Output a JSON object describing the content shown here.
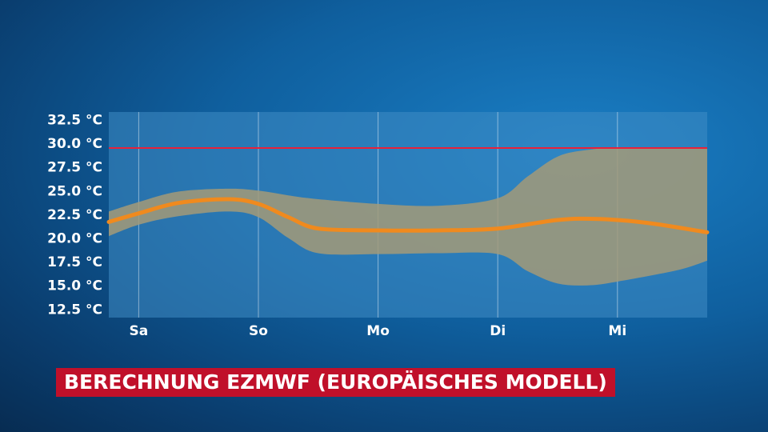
{
  "caption": "BERECHNUNG EZMWF (EUROPÄISCHES MODELL)",
  "colors": {
    "median_line": "#f08a1e",
    "band": "#a39a78",
    "threshold_line": "#e8213a",
    "plot_bg": "#3f8cc4",
    "caption_bg": "#c0102a"
  },
  "chart_data": {
    "type": "line",
    "categories": [
      "Sa",
      "So",
      "Mo",
      "Di",
      "Mi"
    ],
    "x_domain": [
      -0.25,
      4.75
    ],
    "ylim": [
      11.6,
      33.3
    ],
    "y_ticks": [
      {
        "v": 12.5,
        "label": "12.5 °C"
      },
      {
        "v": 15.0,
        "label": "15.0 °C"
      },
      {
        "v": 17.5,
        "label": "17.5 °C"
      },
      {
        "v": 20.0,
        "label": "20.0 °C"
      },
      {
        "v": 22.5,
        "label": "22.5 °C"
      },
      {
        "v": 25.0,
        "label": "25.0 °C"
      },
      {
        "v": 27.5,
        "label": "27.5 °C"
      },
      {
        "v": 30.0,
        "label": "30.0 °C"
      },
      {
        "v": 32.5,
        "label": "32.5 °C"
      }
    ],
    "threshold": 29.5,
    "grid": "vertical",
    "median": {
      "x": [
        -0.25,
        0,
        0.33,
        0.75,
        1.0,
        1.25,
        1.5,
        2.0,
        2.5,
        3.0,
        3.5,
        3.85,
        4.25,
        4.75
      ],
      "y": [
        21.7,
        22.6,
        23.7,
        24.1,
        23.6,
        22.2,
        21.0,
        20.8,
        20.8,
        21.0,
        21.9,
        22.0,
        21.6,
        20.6
      ]
    },
    "band_upper": {
      "x": [
        -0.25,
        0,
        0.33,
        0.75,
        1.0,
        1.25,
        1.5,
        2.0,
        2.5,
        3.0,
        3.25,
        3.5,
        3.75,
        4.0,
        4.5,
        4.75
      ],
      "y": [
        22.8,
        23.8,
        24.9,
        25.2,
        25.0,
        24.5,
        24.1,
        23.6,
        23.4,
        24.2,
        26.5,
        28.6,
        29.3,
        29.5,
        29.5,
        29.5
      ]
    },
    "band_lower": {
      "x": [
        -0.25,
        0,
        0.33,
        0.75,
        1.0,
        1.25,
        1.5,
        2.0,
        2.5,
        3.0,
        3.25,
        3.5,
        3.75,
        4.0,
        4.5,
        4.75
      ],
      "y": [
        20.2,
        21.4,
        22.3,
        22.8,
        22.2,
        20.0,
        18.4,
        18.3,
        18.4,
        18.3,
        16.5,
        15.2,
        15.0,
        15.4,
        16.6,
        17.6
      ]
    }
  }
}
